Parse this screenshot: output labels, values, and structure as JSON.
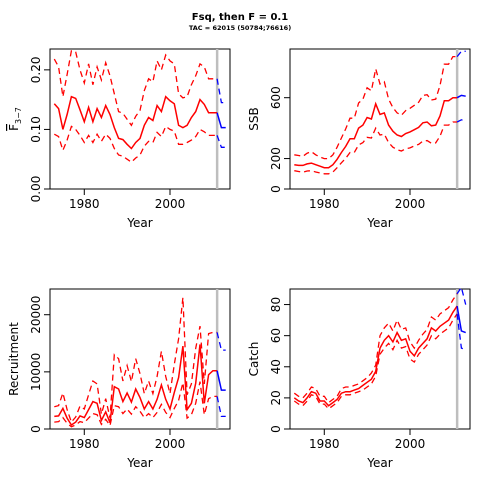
{
  "title": "Fsq, then F = 0.1",
  "subtitle": "TAC = 62015 (50784;76616)",
  "colors": {
    "history": "#ff0000",
    "projection": "#0000ff",
    "marker": "#bebebe",
    "frame": "#000000"
  },
  "chart_data": [
    {
      "type": "line",
      "xlabel": "Year",
      "ylabel": "F̄3−7",
      "ylabel_main": "F",
      "ylabel_sub": "3−7",
      "xlim": [
        1972,
        2014
      ],
      "ylim": [
        0,
        0.235
      ],
      "xticks": [
        1980,
        2000
      ],
      "yticks": [
        0.0,
        0.1,
        0.2
      ],
      "ytick_labels": [
        "0.00",
        "0.10",
        "0.20"
      ],
      "marker_year": 2011,
      "history": {
        "years": [
          1973,
          1974,
          1975,
          1976,
          1977,
          1978,
          1979,
          1980,
          1981,
          1982,
          1983,
          1984,
          1985,
          1986,
          1987,
          1988,
          1989,
          1990,
          1991,
          1992,
          1993,
          1994,
          1995,
          1996,
          1997,
          1998,
          1999,
          2000,
          2001,
          2002,
          2003,
          2004,
          2005,
          2006,
          2007,
          2008,
          2009,
          2010,
          2011
        ],
        "median": [
          0.143,
          0.135,
          0.1,
          0.125,
          0.155,
          0.152,
          0.133,
          0.113,
          0.137,
          0.113,
          0.135,
          0.12,
          0.14,
          0.125,
          0.103,
          0.085,
          0.083,
          0.075,
          0.068,
          0.078,
          0.085,
          0.107,
          0.12,
          0.115,
          0.14,
          0.13,
          0.155,
          0.148,
          0.143,
          0.107,
          0.103,
          0.107,
          0.12,
          0.13,
          0.15,
          0.142,
          0.128,
          0.128,
          0.128
        ],
        "lower": [
          0.092,
          0.088,
          0.065,
          0.082,
          0.105,
          0.1,
          0.09,
          0.078,
          0.09,
          0.078,
          0.092,
          0.08,
          0.092,
          0.085,
          0.068,
          0.057,
          0.055,
          0.05,
          0.045,
          0.052,
          0.057,
          0.072,
          0.08,
          0.078,
          0.095,
          0.088,
          0.105,
          0.1,
          0.097,
          0.075,
          0.075,
          0.078,
          0.082,
          0.088,
          0.1,
          0.096,
          0.09,
          0.09,
          0.09
        ],
        "upper": [
          0.218,
          0.205,
          0.155,
          0.192,
          0.232,
          0.23,
          0.2,
          0.178,
          0.21,
          0.175,
          0.205,
          0.183,
          0.212,
          0.19,
          0.16,
          0.13,
          0.127,
          0.117,
          0.107,
          0.122,
          0.132,
          0.165,
          0.185,
          0.18,
          0.215,
          0.2,
          0.225,
          0.215,
          0.21,
          0.16,
          0.153,
          0.155,
          0.175,
          0.19,
          0.21,
          0.205,
          0.185,
          0.185,
          0.185
        ]
      },
      "projection": {
        "years": [
          2011,
          2012,
          2013
        ],
        "median": [
          0.128,
          0.103,
          0.103
        ],
        "lower": [
          0.09,
          0.07,
          0.07
        ],
        "upper": [
          0.185,
          0.145,
          0.145
        ]
      }
    },
    {
      "type": "line",
      "xlabel": "Year",
      "ylabel": "SSB",
      "xlim": [
        1972,
        2014
      ],
      "ylim": [
        0,
        920
      ],
      "xticks": [
        1980,
        2000
      ],
      "yticks": [
        0,
        200,
        600
      ],
      "ytick_labels": [
        "0",
        "200",
        "600"
      ],
      "marker_year": 2011,
      "history": {
        "years": [
          1973,
          1974,
          1975,
          1976,
          1977,
          1978,
          1979,
          1980,
          1981,
          1982,
          1983,
          1984,
          1985,
          1986,
          1987,
          1988,
          1989,
          1990,
          1991,
          1992,
          1993,
          1994,
          1995,
          1996,
          1997,
          1998,
          1999,
          2000,
          2001,
          2002,
          2003,
          2004,
          2005,
          2006,
          2007,
          2008,
          2009,
          2010,
          2011
        ],
        "median": [
          160,
          155,
          155,
          165,
          170,
          160,
          150,
          140,
          140,
          160,
          195,
          240,
          280,
          330,
          330,
          400,
          420,
          470,
          460,
          560,
          490,
          500,
          420,
          380,
          355,
          345,
          365,
          375,
          390,
          405,
          435,
          440,
          415,
          420,
          480,
          580,
          580,
          600,
          600
        ],
        "lower": [
          120,
          115,
          110,
          118,
          120,
          112,
          105,
          100,
          100,
          112,
          140,
          172,
          202,
          240,
          240,
          290,
          305,
          340,
          335,
          400,
          355,
          360,
          305,
          275,
          258,
          250,
          265,
          270,
          283,
          293,
          315,
          318,
          300,
          303,
          347,
          420,
          420,
          440,
          440
        ],
        "upper": [
          225,
          220,
          215,
          235,
          245,
          225,
          210,
          200,
          200,
          225,
          275,
          335,
          395,
          465,
          465,
          565,
          590,
          665,
          645,
          790,
          690,
          705,
          590,
          535,
          500,
          485,
          515,
          530,
          550,
          570,
          615,
          620,
          585,
          590,
          680,
          820,
          820,
          870,
          870
        ]
      },
      "projection": {
        "years": [
          2011,
          2012,
          2013
        ],
        "median": [
          600,
          615,
          610
        ],
        "lower": [
          440,
          455,
          445
        ],
        "upper": [
          870,
          905,
          905
        ]
      }
    },
    {
      "type": "line",
      "xlabel": "Year",
      "ylabel": "Recruitment",
      "xlim": [
        1972,
        2014
      ],
      "ylim": [
        0,
        24500
      ],
      "xticks": [
        1980,
        2000
      ],
      "yticks": [
        0,
        10000,
        20000
      ],
      "ytick_labels": [
        "0",
        "10000",
        "20000"
      ],
      "marker_year": 2011,
      "history": {
        "years": [
          1973,
          1974,
          1975,
          1976,
          1977,
          1978,
          1979,
          1980,
          1981,
          1982,
          1983,
          1984,
          1985,
          1986,
          1987,
          1988,
          1989,
          1990,
          1991,
          1992,
          1993,
          1994,
          1995,
          1996,
          1997,
          1998,
          1999,
          2000,
          2001,
          2002,
          2003,
          2004,
          2005,
          2006,
          2007,
          2008,
          2009,
          2010,
          2011
        ],
        "median": [
          2200,
          2300,
          3600,
          1900,
          700,
          1200,
          2300,
          2000,
          3400,
          4800,
          4500,
          1500,
          3000,
          1100,
          7400,
          7000,
          4800,
          6300,
          4700,
          7000,
          5500,
          3500,
          4800,
          3500,
          5200,
          7700,
          5200,
          3500,
          6400,
          9000,
          14500,
          3400,
          4500,
          8000,
          14800,
          4500,
          9500,
          10200,
          10200
        ],
        "lower": [
          1200,
          1300,
          2000,
          1000,
          400,
          700,
          1300,
          1100,
          1900,
          2700,
          2500,
          800,
          1700,
          600,
          4100,
          3900,
          2700,
          3500,
          2600,
          3900,
          3100,
          2000,
          2700,
          2000,
          2900,
          4300,
          2900,
          2000,
          3600,
          5000,
          8100,
          1900,
          2500,
          4500,
          8300,
          2500,
          5300,
          5700,
          5700
        ],
        "upper": [
          3900,
          4100,
          6300,
          3400,
          1200,
          2100,
          4000,
          3500,
          6000,
          8400,
          7900,
          2600,
          5300,
          1900,
          13000,
          12300,
          8400,
          11100,
          8300,
          12300,
          9700,
          6200,
          8400,
          6200,
          9200,
          13600,
          9200,
          6200,
          11300,
          15800,
          23000,
          6000,
          7900,
          14100,
          18000,
          7900,
          16700,
          16900,
          16900
        ]
      },
      "projection": {
        "years": [
          2011,
          2012,
          2013
        ],
        "median": [
          10200,
          6800,
          6800
        ],
        "lower": [
          5700,
          2200,
          2200
        ],
        "upper": [
          16900,
          13800,
          13800
        ]
      }
    },
    {
      "type": "line",
      "xlabel": "Year",
      "ylabel": "Catch",
      "xlim": [
        1972,
        2014
      ],
      "ylim": [
        0,
        90
      ],
      "xticks": [
        1980,
        2000
      ],
      "yticks": [
        0,
        20,
        40,
        60,
        80
      ],
      "ytick_labels": [
        "0",
        "20",
        "40",
        "60",
        "80"
      ],
      "marker_year": 2011,
      "history": {
        "years": [
          1973,
          1974,
          1975,
          1976,
          1977,
          1978,
          1979,
          1980,
          1981,
          1982,
          1983,
          1984,
          1985,
          1986,
          1987,
          1988,
          1989,
          1990,
          1991,
          1992,
          1993,
          1994,
          1995,
          1996,
          1997,
          1998,
          1999,
          2000,
          2001,
          2002,
          2003,
          2004,
          2005,
          2006,
          2007,
          2008,
          2009,
          2010,
          2011
        ],
        "median": [
          20,
          18,
          17,
          20,
          24,
          23,
          18,
          18,
          15,
          17,
          19,
          23,
          24,
          24,
          25,
          26,
          28,
          30,
          32,
          37,
          52,
          57,
          60,
          56,
          62,
          57,
          58,
          50,
          47,
          52,
          55,
          58,
          65,
          63,
          66,
          68,
          70,
          75,
          79
        ],
        "lower": [
          18,
          16,
          15,
          18,
          22,
          21,
          16,
          16,
          13,
          15,
          17,
          21,
          22,
          22,
          23,
          24,
          25,
          27,
          29,
          34,
          48,
          52,
          55,
          51,
          57,
          52,
          53,
          45,
          43,
          48,
          51,
          54,
          60,
          58,
          61,
          63,
          65,
          70,
          74
        ],
        "upper": [
          23,
          21,
          20,
          23,
          27,
          26,
          21,
          21,
          17,
          19,
          21,
          26,
          27,
          27,
          28,
          29,
          31,
          33,
          36,
          41,
          60,
          65,
          68,
          63,
          70,
          64,
          65,
          56,
          52,
          57,
          61,
          64,
          72,
          70,
          74,
          76,
          78,
          83,
          87
        ]
      },
      "projection": {
        "years": [
          2011,
          2012,
          2013
        ],
        "median": [
          79,
          63,
          62
        ],
        "lower": [
          74,
          52,
          51
        ],
        "upper": [
          87,
          91,
          80
        ]
      }
    }
  ]
}
